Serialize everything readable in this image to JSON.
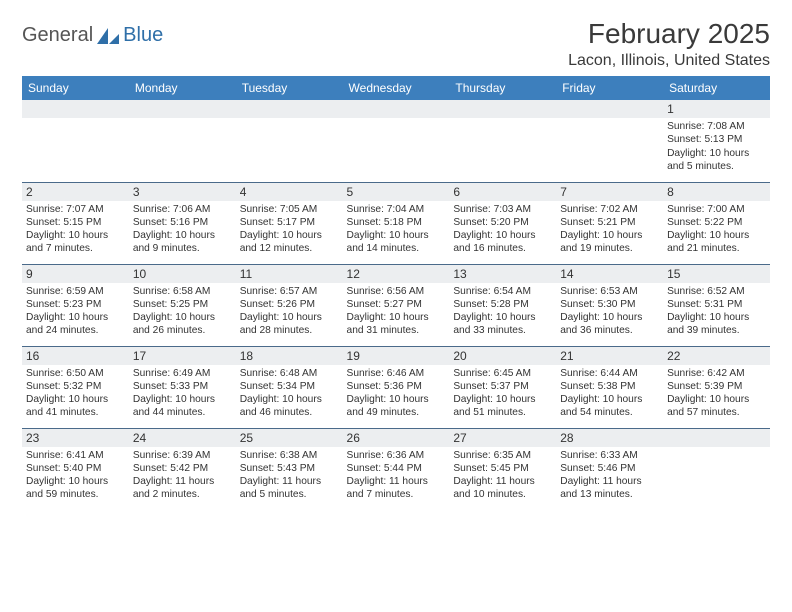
{
  "brand": {
    "word1": "General",
    "word2": "Blue"
  },
  "title": "February 2025",
  "location": "Lacon, Illinois, United States",
  "colors": {
    "header_bg": "#3d7fbd",
    "header_text": "#ffffff",
    "grid_line": "#4a6a8a",
    "daynum_bg": "#eceef0",
    "text": "#333333",
    "logo_gray": "#555555",
    "logo_blue": "#2f6fa8",
    "page_bg": "#ffffff"
  },
  "day_headers": [
    "Sunday",
    "Monday",
    "Tuesday",
    "Wednesday",
    "Thursday",
    "Friday",
    "Saturday"
  ],
  "weeks": [
    [
      {
        "day": "",
        "sunrise": "",
        "sunset": "",
        "daylight": ""
      },
      {
        "day": "",
        "sunrise": "",
        "sunset": "",
        "daylight": ""
      },
      {
        "day": "",
        "sunrise": "",
        "sunset": "",
        "daylight": ""
      },
      {
        "day": "",
        "sunrise": "",
        "sunset": "",
        "daylight": ""
      },
      {
        "day": "",
        "sunrise": "",
        "sunset": "",
        "daylight": ""
      },
      {
        "day": "",
        "sunrise": "",
        "sunset": "",
        "daylight": ""
      },
      {
        "day": "1",
        "sunrise": "Sunrise: 7:08 AM",
        "sunset": "Sunset: 5:13 PM",
        "daylight": "Daylight: 10 hours and 5 minutes."
      }
    ],
    [
      {
        "day": "2",
        "sunrise": "Sunrise: 7:07 AM",
        "sunset": "Sunset: 5:15 PM",
        "daylight": "Daylight: 10 hours and 7 minutes."
      },
      {
        "day": "3",
        "sunrise": "Sunrise: 7:06 AM",
        "sunset": "Sunset: 5:16 PM",
        "daylight": "Daylight: 10 hours and 9 minutes."
      },
      {
        "day": "4",
        "sunrise": "Sunrise: 7:05 AM",
        "sunset": "Sunset: 5:17 PM",
        "daylight": "Daylight: 10 hours and 12 minutes."
      },
      {
        "day": "5",
        "sunrise": "Sunrise: 7:04 AM",
        "sunset": "Sunset: 5:18 PM",
        "daylight": "Daylight: 10 hours and 14 minutes."
      },
      {
        "day": "6",
        "sunrise": "Sunrise: 7:03 AM",
        "sunset": "Sunset: 5:20 PM",
        "daylight": "Daylight: 10 hours and 16 minutes."
      },
      {
        "day": "7",
        "sunrise": "Sunrise: 7:02 AM",
        "sunset": "Sunset: 5:21 PM",
        "daylight": "Daylight: 10 hours and 19 minutes."
      },
      {
        "day": "8",
        "sunrise": "Sunrise: 7:00 AM",
        "sunset": "Sunset: 5:22 PM",
        "daylight": "Daylight: 10 hours and 21 minutes."
      }
    ],
    [
      {
        "day": "9",
        "sunrise": "Sunrise: 6:59 AM",
        "sunset": "Sunset: 5:23 PM",
        "daylight": "Daylight: 10 hours and 24 minutes."
      },
      {
        "day": "10",
        "sunrise": "Sunrise: 6:58 AM",
        "sunset": "Sunset: 5:25 PM",
        "daylight": "Daylight: 10 hours and 26 minutes."
      },
      {
        "day": "11",
        "sunrise": "Sunrise: 6:57 AM",
        "sunset": "Sunset: 5:26 PM",
        "daylight": "Daylight: 10 hours and 28 minutes."
      },
      {
        "day": "12",
        "sunrise": "Sunrise: 6:56 AM",
        "sunset": "Sunset: 5:27 PM",
        "daylight": "Daylight: 10 hours and 31 minutes."
      },
      {
        "day": "13",
        "sunrise": "Sunrise: 6:54 AM",
        "sunset": "Sunset: 5:28 PM",
        "daylight": "Daylight: 10 hours and 33 minutes."
      },
      {
        "day": "14",
        "sunrise": "Sunrise: 6:53 AM",
        "sunset": "Sunset: 5:30 PM",
        "daylight": "Daylight: 10 hours and 36 minutes."
      },
      {
        "day": "15",
        "sunrise": "Sunrise: 6:52 AM",
        "sunset": "Sunset: 5:31 PM",
        "daylight": "Daylight: 10 hours and 39 minutes."
      }
    ],
    [
      {
        "day": "16",
        "sunrise": "Sunrise: 6:50 AM",
        "sunset": "Sunset: 5:32 PM",
        "daylight": "Daylight: 10 hours and 41 minutes."
      },
      {
        "day": "17",
        "sunrise": "Sunrise: 6:49 AM",
        "sunset": "Sunset: 5:33 PM",
        "daylight": "Daylight: 10 hours and 44 minutes."
      },
      {
        "day": "18",
        "sunrise": "Sunrise: 6:48 AM",
        "sunset": "Sunset: 5:34 PM",
        "daylight": "Daylight: 10 hours and 46 minutes."
      },
      {
        "day": "19",
        "sunrise": "Sunrise: 6:46 AM",
        "sunset": "Sunset: 5:36 PM",
        "daylight": "Daylight: 10 hours and 49 minutes."
      },
      {
        "day": "20",
        "sunrise": "Sunrise: 6:45 AM",
        "sunset": "Sunset: 5:37 PM",
        "daylight": "Daylight: 10 hours and 51 minutes."
      },
      {
        "day": "21",
        "sunrise": "Sunrise: 6:44 AM",
        "sunset": "Sunset: 5:38 PM",
        "daylight": "Daylight: 10 hours and 54 minutes."
      },
      {
        "day": "22",
        "sunrise": "Sunrise: 6:42 AM",
        "sunset": "Sunset: 5:39 PM",
        "daylight": "Daylight: 10 hours and 57 minutes."
      }
    ],
    [
      {
        "day": "23",
        "sunrise": "Sunrise: 6:41 AM",
        "sunset": "Sunset: 5:40 PM",
        "daylight": "Daylight: 10 hours and 59 minutes."
      },
      {
        "day": "24",
        "sunrise": "Sunrise: 6:39 AM",
        "sunset": "Sunset: 5:42 PM",
        "daylight": "Daylight: 11 hours and 2 minutes."
      },
      {
        "day": "25",
        "sunrise": "Sunrise: 6:38 AM",
        "sunset": "Sunset: 5:43 PM",
        "daylight": "Daylight: 11 hours and 5 minutes."
      },
      {
        "day": "26",
        "sunrise": "Sunrise: 6:36 AM",
        "sunset": "Sunset: 5:44 PM",
        "daylight": "Daylight: 11 hours and 7 minutes."
      },
      {
        "day": "27",
        "sunrise": "Sunrise: 6:35 AM",
        "sunset": "Sunset: 5:45 PM",
        "daylight": "Daylight: 11 hours and 10 minutes."
      },
      {
        "day": "28",
        "sunrise": "Sunrise: 6:33 AM",
        "sunset": "Sunset: 5:46 PM",
        "daylight": "Daylight: 11 hours and 13 minutes."
      },
      {
        "day": "",
        "sunrise": "",
        "sunset": "",
        "daylight": ""
      }
    ]
  ]
}
